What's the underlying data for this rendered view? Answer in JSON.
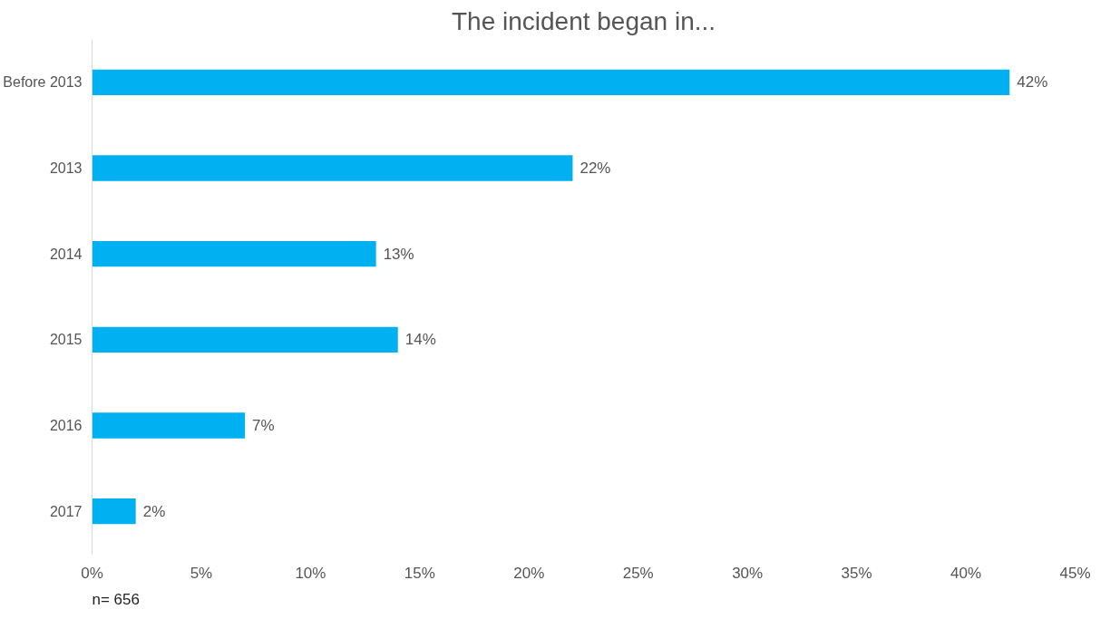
{
  "chart_data": {
    "type": "bar",
    "orientation": "horizontal",
    "title": "The incident began in...",
    "categories": [
      "Before 2013",
      "2013",
      "2014",
      "2015",
      "2016",
      "2017"
    ],
    "values": [
      42,
      22,
      13,
      14,
      7,
      2
    ],
    "color": "#00b0f0",
    "value_labels": [
      "42%",
      "22%",
      "13%",
      "14%",
      "7%",
      "2%"
    ],
    "xlim": [
      0,
      45
    ],
    "xticks": [
      {
        "value": 0,
        "label": "0%"
      },
      {
        "value": 5,
        "label": "5%"
      },
      {
        "value": 10,
        "label": "10%"
      },
      {
        "value": 15,
        "label": "15%"
      },
      {
        "value": 20,
        "label": "20%"
      },
      {
        "value": 25,
        "label": "25%"
      },
      {
        "value": 30,
        "label": "30%"
      },
      {
        "value": 35,
        "label": "35%"
      },
      {
        "value": 40,
        "label": "40%"
      },
      {
        "value": 45,
        "label": "45%"
      }
    ],
    "grid": false,
    "annotations": [
      "n= 656"
    ]
  }
}
